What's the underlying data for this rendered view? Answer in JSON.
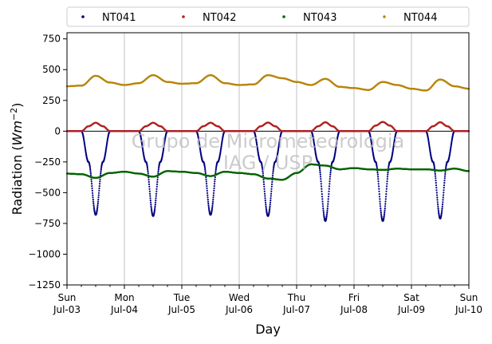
{
  "chart_data": {
    "type": "scatter",
    "xlabel": "Day",
    "ylabel_main": "Radiation (",
    "ylabel_unit_base": "Wm",
    "ylabel_unit_exp": "−2",
    "ylabel_tail": ")",
    "ylim": [
      -1250,
      800
    ],
    "yticks": [
      {
        "value": 750,
        "label": "750"
      },
      {
        "value": 500,
        "label": "500"
      },
      {
        "value": 250,
        "label": "250"
      },
      {
        "value": 0,
        "label": "0"
      },
      {
        "value": -250,
        "label": "−250"
      },
      {
        "value": -500,
        "label": "−500"
      },
      {
        "value": -750,
        "label": "−750"
      },
      {
        "value": -1000,
        "label": "−1000"
      },
      {
        "value": -1250,
        "label": "−1250"
      }
    ],
    "xlim": [
      "2023-07-03",
      "2023-07-10"
    ],
    "xticks": [
      {
        "day": "Sun",
        "date": "Jul-03"
      },
      {
        "day": "Mon",
        "date": "Jul-04"
      },
      {
        "day": "Tue",
        "date": "Jul-05"
      },
      {
        "day": "Wed",
        "date": "Jul-06"
      },
      {
        "day": "Thu",
        "date": "Jul-07"
      },
      {
        "day": "Fri",
        "date": "Jul-08"
      },
      {
        "day": "Sat",
        "date": "Jul-09"
      },
      {
        "day": "Sun",
        "date": "Jul-10"
      }
    ],
    "grid": "vertical",
    "legend_position": "top",
    "watermark": [
      "Grupo de Micrometeorologia",
      "IAG / USP"
    ],
    "series": [
      {
        "name": "NT041",
        "color": "#000080",
        "x": [
          "Jul-03 00:00",
          "Jul-03 06:00",
          "Jul-03 09:00",
          "Jul-03 12:00",
          "Jul-03 15:00",
          "Jul-03 18:00",
          "Jul-04 06:00",
          "Jul-04 09:00",
          "Jul-04 12:00",
          "Jul-04 15:00",
          "Jul-04 18:00",
          "Jul-05 06:00",
          "Jul-05 09:00",
          "Jul-05 12:00",
          "Jul-05 15:00",
          "Jul-05 18:00",
          "Jul-06 06:00",
          "Jul-06 09:00",
          "Jul-06 12:00",
          "Jul-06 15:00",
          "Jul-06 18:00",
          "Jul-07 06:00",
          "Jul-07 09:00",
          "Jul-07 12:00",
          "Jul-07 15:00",
          "Jul-07 18:00",
          "Jul-08 06:00",
          "Jul-08 09:00",
          "Jul-08 12:00",
          "Jul-08 15:00",
          "Jul-08 18:00",
          "Jul-09 06:00",
          "Jul-09 09:00",
          "Jul-09 12:00",
          "Jul-09 15:00",
          "Jul-09 18:00",
          "Jul-10 00:00"
        ],
        "y": [
          0,
          0,
          -250,
          -680,
          -250,
          0,
          0,
          -250,
          -690,
          -250,
          0,
          0,
          -250,
          -680,
          -250,
          0,
          0,
          -250,
          -690,
          -250,
          0,
          0,
          -250,
          -730,
          -250,
          0,
          0,
          -250,
          -730,
          -250,
          0,
          0,
          -250,
          -710,
          -250,
          0,
          0
        ]
      },
      {
        "name": "NT042",
        "color": "#b22222",
        "x": [
          "Jul-03 00:00",
          "Jul-03 06:00",
          "Jul-03 09:00",
          "Jul-03 12:00",
          "Jul-03 15:00",
          "Jul-03 18:00",
          "Jul-04 06:00",
          "Jul-04 09:00",
          "Jul-04 12:00",
          "Jul-04 15:00",
          "Jul-04 18:00",
          "Jul-05 06:00",
          "Jul-05 09:00",
          "Jul-05 12:00",
          "Jul-05 15:00",
          "Jul-05 18:00",
          "Jul-06 06:00",
          "Jul-06 09:00",
          "Jul-06 12:00",
          "Jul-06 15:00",
          "Jul-06 18:00",
          "Jul-07 06:00",
          "Jul-07 09:00",
          "Jul-07 12:00",
          "Jul-07 15:00",
          "Jul-07 18:00",
          "Jul-08 06:00",
          "Jul-08 09:00",
          "Jul-08 12:00",
          "Jul-08 15:00",
          "Jul-08 18:00",
          "Jul-09 06:00",
          "Jul-09 09:00",
          "Jul-09 12:00",
          "Jul-09 15:00",
          "Jul-09 18:00",
          "Jul-10 00:00"
        ],
        "y": [
          0,
          0,
          40,
          68,
          40,
          0,
          0,
          40,
          68,
          40,
          0,
          0,
          40,
          68,
          40,
          0,
          0,
          40,
          70,
          40,
          0,
          0,
          40,
          72,
          40,
          0,
          0,
          45,
          75,
          45,
          0,
          0,
          40,
          72,
          40,
          0,
          0
        ]
      },
      {
        "name": "NT043",
        "color": "#006400",
        "x": [
          "Jul-03 00:00",
          "Jul-03 06:00",
          "Jul-03 12:00",
          "Jul-03 18:00",
          "Jul-04 00:00",
          "Jul-04 06:00",
          "Jul-04 12:00",
          "Jul-04 18:00",
          "Jul-05 00:00",
          "Jul-05 06:00",
          "Jul-05 12:00",
          "Jul-05 18:00",
          "Jul-06 00:00",
          "Jul-06 06:00",
          "Jul-06 12:00",
          "Jul-06 18:00",
          "Jul-07 00:00",
          "Jul-07 06:00",
          "Jul-07 12:00",
          "Jul-07 18:00",
          "Jul-08 00:00",
          "Jul-08 06:00",
          "Jul-08 12:00",
          "Jul-08 18:00",
          "Jul-09 00:00",
          "Jul-09 06:00",
          "Jul-09 12:00",
          "Jul-09 18:00",
          "Jul-10 00:00"
        ],
        "y": [
          -345,
          -350,
          -380,
          -340,
          -330,
          -345,
          -370,
          -325,
          -330,
          -340,
          -365,
          -330,
          -340,
          -350,
          -385,
          -395,
          -340,
          -270,
          -280,
          -310,
          -300,
          -310,
          -315,
          -305,
          -310,
          -310,
          -320,
          -305,
          -325
        ]
      },
      {
        "name": "NT044",
        "color": "#b8860b",
        "x": [
          "Jul-03 00:00",
          "Jul-03 06:00",
          "Jul-03 12:00",
          "Jul-03 18:00",
          "Jul-04 00:00",
          "Jul-04 06:00",
          "Jul-04 12:00",
          "Jul-04 18:00",
          "Jul-05 00:00",
          "Jul-05 06:00",
          "Jul-05 12:00",
          "Jul-05 18:00",
          "Jul-06 00:00",
          "Jul-06 06:00",
          "Jul-06 12:00",
          "Jul-06 18:00",
          "Jul-07 00:00",
          "Jul-07 06:00",
          "Jul-07 12:00",
          "Jul-07 18:00",
          "Jul-08 00:00",
          "Jul-08 06:00",
          "Jul-08 12:00",
          "Jul-08 18:00",
          "Jul-09 00:00",
          "Jul-09 06:00",
          "Jul-09 12:00",
          "Jul-09 18:00",
          "Jul-10 00:00"
        ],
        "y": [
          365,
          370,
          450,
          395,
          375,
          390,
          455,
          400,
          385,
          390,
          455,
          390,
          375,
          380,
          455,
          430,
          400,
          375,
          425,
          360,
          350,
          335,
          400,
          375,
          345,
          330,
          420,
          365,
          345
        ]
      }
    ]
  }
}
